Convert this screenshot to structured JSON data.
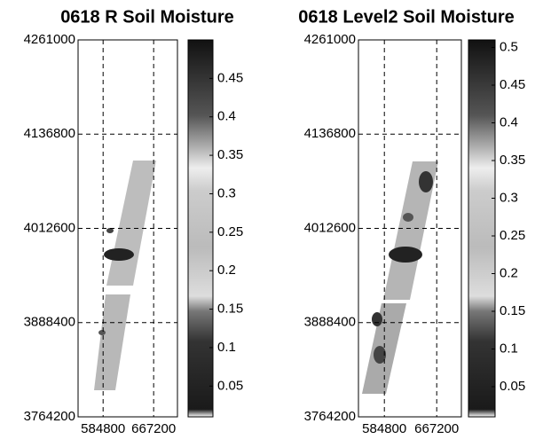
{
  "chart_data": [
    {
      "type": "map",
      "title": "0618 R Soil Moisture",
      "xlim": [
        544000,
        706000
      ],
      "xticks": [
        584800,
        667200
      ],
      "ylim": [
        3764200,
        4261000
      ],
      "yticks": [
        3764200,
        3888400,
        4012600,
        4136800,
        4261000
      ],
      "grid": true,
      "clim": [
        0.01,
        0.5
      ],
      "cticks": [
        0.05,
        0.1,
        0.15,
        0.2,
        0.25,
        0.3,
        0.35,
        0.4,
        0.45
      ]
    },
    {
      "type": "map",
      "title": "0618 Level2 Soil Moisture",
      "xlim": [
        544000,
        706000
      ],
      "xticks": [
        584800,
        667200
      ],
      "ylim": [
        3764200,
        4261000
      ],
      "yticks": [
        3764200,
        3888400,
        4012600,
        4136800,
        4261000
      ],
      "grid": true,
      "clim": [
        0.01,
        0.51
      ],
      "cticks": [
        0.05,
        0.1,
        0.15,
        0.2,
        0.25,
        0.3,
        0.35,
        0.4,
        0.45,
        0.5
      ]
    }
  ]
}
